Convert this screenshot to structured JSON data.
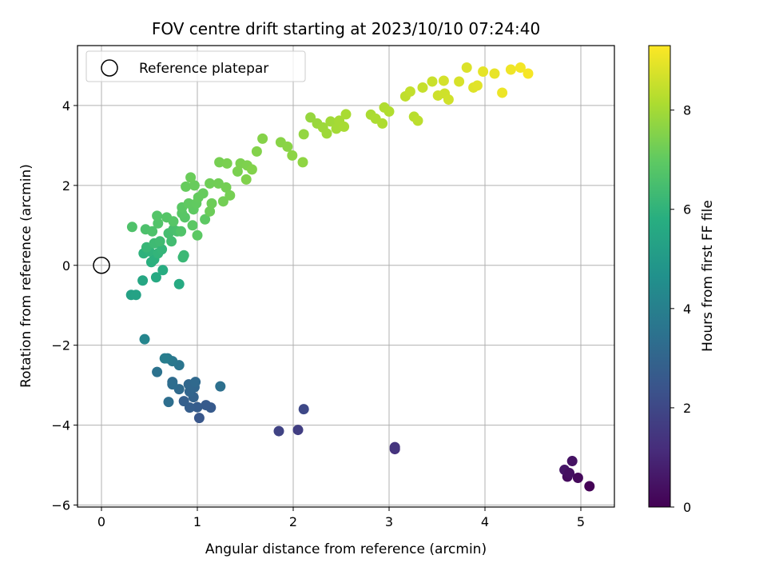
{
  "chart_data": {
    "type": "scatter",
    "title": "FOV centre drift starting at 2023/10/10 07:24:40",
    "xlabel": "Angular distance from reference (arcmin)",
    "ylabel": "Rotation from reference (arcmin)",
    "xlim": [
      -0.25,
      5.35
    ],
    "ylim": [
      -6.05,
      5.5
    ],
    "xticks": [
      "0",
      "1",
      "2",
      "3",
      "4",
      "5"
    ],
    "yticks": [
      "−6",
      "−4",
      "−2",
      "0",
      "2",
      "4"
    ],
    "grid": true,
    "legend": {
      "position": "upper-left",
      "entries": [
        "Reference platepar"
      ]
    },
    "reference_point": {
      "x": 0,
      "y": 0
    },
    "colorbar": {
      "label": "Hours from first FF file",
      "range": [
        0,
        9.3
      ],
      "ticks": [
        "0",
        "2",
        "4",
        "6",
        "8"
      ],
      "colormap": "viridis"
    },
    "points": [
      {
        "x": 5.09,
        "y": -5.53,
        "t": 0.05
      },
      {
        "x": 4.97,
        "y": -5.32,
        "t": 0.2
      },
      {
        "x": 4.86,
        "y": -5.29,
        "t": 0.3
      },
      {
        "x": 4.91,
        "y": -4.9,
        "t": 0.45
      },
      {
        "x": 4.83,
        "y": -5.12,
        "t": 0.55
      },
      {
        "x": 4.88,
        "y": -5.2,
        "t": 0.4
      },
      {
        "x": 3.06,
        "y": -4.6,
        "t": 1.3
      },
      {
        "x": 3.06,
        "y": -4.55,
        "t": 1.4
      },
      {
        "x": 2.05,
        "y": -4.12,
        "t": 1.7
      },
      {
        "x": 1.85,
        "y": -4.15,
        "t": 1.85
      },
      {
        "x": 2.11,
        "y": -3.6,
        "t": 2.0
      },
      {
        "x": 1.02,
        "y": -3.82,
        "t": 2.5
      },
      {
        "x": 1.14,
        "y": -3.56,
        "t": 2.6
      },
      {
        "x": 1.09,
        "y": -3.5,
        "t": 2.65
      },
      {
        "x": 1.0,
        "y": -3.55,
        "t": 2.7
      },
      {
        "x": 0.92,
        "y": -3.56,
        "t": 2.75
      },
      {
        "x": 0.86,
        "y": -3.4,
        "t": 2.8
      },
      {
        "x": 0.96,
        "y": -3.3,
        "t": 2.9
      },
      {
        "x": 0.92,
        "y": -3.16,
        "t": 3.0
      },
      {
        "x": 0.97,
        "y": -3.05,
        "t": 3.05
      },
      {
        "x": 0.91,
        "y": -2.98,
        "t": 3.1
      },
      {
        "x": 0.98,
        "y": -2.92,
        "t": 3.15
      },
      {
        "x": 0.81,
        "y": -3.1,
        "t": 3.2
      },
      {
        "x": 0.74,
        "y": -2.92,
        "t": 3.25
      },
      {
        "x": 0.74,
        "y": -2.98,
        "t": 3.3
      },
      {
        "x": 0.7,
        "y": -3.42,
        "t": 3.35
      },
      {
        "x": 1.24,
        "y": -3.03,
        "t": 3.4
      },
      {
        "x": 0.58,
        "y": -2.67,
        "t": 3.5
      },
      {
        "x": 0.81,
        "y": -2.5,
        "t": 3.6
      },
      {
        "x": 0.74,
        "y": -2.4,
        "t": 3.7
      },
      {
        "x": 0.69,
        "y": -2.33,
        "t": 3.8
      },
      {
        "x": 0.66,
        "y": -2.33,
        "t": 3.9
      },
      {
        "x": 0.45,
        "y": -1.85,
        "t": 4.2
      },
      {
        "x": 0.31,
        "y": -0.74,
        "t": 5.3
      },
      {
        "x": 0.36,
        "y": -0.74,
        "t": 5.35
      },
      {
        "x": 0.43,
        "y": -0.38,
        "t": 5.5
      },
      {
        "x": 0.57,
        "y": -0.3,
        "t": 5.6
      },
      {
        "x": 0.81,
        "y": -0.47,
        "t": 5.65
      },
      {
        "x": 0.64,
        "y": -0.12,
        "t": 5.75
      },
      {
        "x": 0.52,
        "y": 0.08,
        "t": 5.85
      },
      {
        "x": 0.55,
        "y": 0.15,
        "t": 5.9
      },
      {
        "x": 0.44,
        "y": 0.3,
        "t": 5.95
      },
      {
        "x": 0.5,
        "y": 0.35,
        "t": 6.0
      },
      {
        "x": 0.59,
        "y": 0.3,
        "t": 6.05
      },
      {
        "x": 0.63,
        "y": 0.4,
        "t": 6.1
      },
      {
        "x": 0.47,
        "y": 0.45,
        "t": 6.15
      },
      {
        "x": 0.85,
        "y": 0.2,
        "t": 6.2
      },
      {
        "x": 0.86,
        "y": 0.25,
        "t": 6.25
      },
      {
        "x": 0.55,
        "y": 0.55,
        "t": 6.3
      },
      {
        "x": 0.61,
        "y": 0.6,
        "t": 6.35
      },
      {
        "x": 0.73,
        "y": 0.6,
        "t": 6.4
      },
      {
        "x": 0.7,
        "y": 0.8,
        "t": 6.45
      },
      {
        "x": 0.75,
        "y": 0.9,
        "t": 6.5
      },
      {
        "x": 0.79,
        "y": 0.85,
        "t": 6.55
      },
      {
        "x": 0.46,
        "y": 0.9,
        "t": 6.6
      },
      {
        "x": 0.53,
        "y": 0.85,
        "t": 6.62
      },
      {
        "x": 0.32,
        "y": 0.96,
        "t": 6.65
      },
      {
        "x": 0.83,
        "y": 0.85,
        "t": 6.7
      },
      {
        "x": 0.59,
        "y": 1.05,
        "t": 6.72
      },
      {
        "x": 0.58,
        "y": 1.24,
        "t": 6.75
      },
      {
        "x": 0.68,
        "y": 1.2,
        "t": 6.78
      },
      {
        "x": 0.75,
        "y": 1.1,
        "t": 6.8
      },
      {
        "x": 0.87,
        "y": 1.2,
        "t": 6.82
      },
      {
        "x": 0.84,
        "y": 1.3,
        "t": 6.85
      },
      {
        "x": 0.84,
        "y": 1.45,
        "t": 6.88
      },
      {
        "x": 0.95,
        "y": 1.0,
        "t": 6.9
      },
      {
        "x": 1.0,
        "y": 0.75,
        "t": 6.92
      },
      {
        "x": 1.08,
        "y": 1.15,
        "t": 6.95
      },
      {
        "x": 0.96,
        "y": 1.4,
        "t": 6.98
      },
      {
        "x": 0.91,
        "y": 1.55,
        "t": 7.0
      },
      {
        "x": 0.99,
        "y": 1.55,
        "t": 7.02
      },
      {
        "x": 1.01,
        "y": 1.7,
        "t": 7.05
      },
      {
        "x": 1.06,
        "y": 1.8,
        "t": 7.08
      },
      {
        "x": 0.88,
        "y": 1.97,
        "t": 7.1
      },
      {
        "x": 0.97,
        "y": 2.0,
        "t": 7.12
      },
      {
        "x": 0.93,
        "y": 2.2,
        "t": 7.15
      },
      {
        "x": 1.13,
        "y": 1.35,
        "t": 7.18
      },
      {
        "x": 1.15,
        "y": 1.55,
        "t": 7.2
      },
      {
        "x": 1.13,
        "y": 2.05,
        "t": 7.22
      },
      {
        "x": 1.22,
        "y": 2.05,
        "t": 7.25
      },
      {
        "x": 1.27,
        "y": 1.6,
        "t": 7.28
      },
      {
        "x": 1.3,
        "y": 1.95,
        "t": 7.3
      },
      {
        "x": 1.34,
        "y": 1.75,
        "t": 7.32
      },
      {
        "x": 1.23,
        "y": 2.58,
        "t": 7.35
      },
      {
        "x": 1.31,
        "y": 2.55,
        "t": 7.38
      },
      {
        "x": 1.42,
        "y": 2.35,
        "t": 7.4
      },
      {
        "x": 1.45,
        "y": 2.55,
        "t": 7.42
      },
      {
        "x": 1.52,
        "y": 2.5,
        "t": 7.45
      },
      {
        "x": 1.51,
        "y": 2.15,
        "t": 7.48
      },
      {
        "x": 1.57,
        "y": 2.4,
        "t": 7.5
      },
      {
        "x": 1.62,
        "y": 2.85,
        "t": 7.52
      },
      {
        "x": 1.68,
        "y": 3.17,
        "t": 7.55
      },
      {
        "x": 1.87,
        "y": 3.08,
        "t": 7.6
      },
      {
        "x": 1.94,
        "y": 2.97,
        "t": 7.62
      },
      {
        "x": 1.99,
        "y": 2.75,
        "t": 7.65
      },
      {
        "x": 2.1,
        "y": 2.58,
        "t": 7.7
      },
      {
        "x": 2.11,
        "y": 3.28,
        "t": 7.75
      },
      {
        "x": 2.18,
        "y": 3.7,
        "t": 7.8
      },
      {
        "x": 2.25,
        "y": 3.55,
        "t": 7.85
      },
      {
        "x": 2.31,
        "y": 3.45,
        "t": 7.9
      },
      {
        "x": 2.35,
        "y": 3.3,
        "t": 7.92
      },
      {
        "x": 2.39,
        "y": 3.6,
        "t": 7.95
      },
      {
        "x": 2.45,
        "y": 3.42,
        "t": 8.0
      },
      {
        "x": 2.48,
        "y": 3.62,
        "t": 8.02
      },
      {
        "x": 2.53,
        "y": 3.47,
        "t": 8.05
      },
      {
        "x": 2.55,
        "y": 3.78,
        "t": 8.08
      },
      {
        "x": 2.81,
        "y": 3.77,
        "t": 8.1
      },
      {
        "x": 2.86,
        "y": 3.67,
        "t": 8.12
      },
      {
        "x": 2.93,
        "y": 3.55,
        "t": 8.15
      },
      {
        "x": 2.95,
        "y": 3.95,
        "t": 8.18
      },
      {
        "x": 3.0,
        "y": 3.85,
        "t": 8.2
      },
      {
        "x": 3.26,
        "y": 3.72,
        "t": 8.3
      },
      {
        "x": 3.3,
        "y": 3.62,
        "t": 8.35
      },
      {
        "x": 3.17,
        "y": 4.23,
        "t": 8.4
      },
      {
        "x": 3.22,
        "y": 4.35,
        "t": 8.45
      },
      {
        "x": 3.35,
        "y": 4.45,
        "t": 8.5
      },
      {
        "x": 3.45,
        "y": 4.6,
        "t": 8.55
      },
      {
        "x": 3.51,
        "y": 4.25,
        "t": 8.6
      },
      {
        "x": 3.58,
        "y": 4.3,
        "t": 8.62
      },
      {
        "x": 3.62,
        "y": 4.15,
        "t": 8.65
      },
      {
        "x": 3.57,
        "y": 4.62,
        "t": 8.7
      },
      {
        "x": 3.73,
        "y": 4.6,
        "t": 8.75
      },
      {
        "x": 3.81,
        "y": 4.95,
        "t": 8.8
      },
      {
        "x": 3.88,
        "y": 4.45,
        "t": 8.85
      },
      {
        "x": 3.92,
        "y": 4.5,
        "t": 8.9
      },
      {
        "x": 3.98,
        "y": 4.85,
        "t": 8.95
      },
      {
        "x": 4.1,
        "y": 4.8,
        "t": 9.0
      },
      {
        "x": 4.18,
        "y": 4.32,
        "t": 9.05
      },
      {
        "x": 4.27,
        "y": 4.9,
        "t": 9.1
      },
      {
        "x": 4.37,
        "y": 4.95,
        "t": 9.15
      },
      {
        "x": 4.45,
        "y": 4.8,
        "t": 9.2
      }
    ]
  }
}
